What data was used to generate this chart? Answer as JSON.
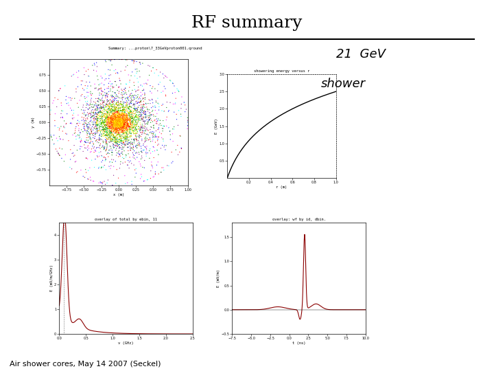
{
  "title": "RF summary",
  "subtitle": "Air shower cores, May 14 2007 (Seckel)",
  "handwritten_line1": "21  GeV",
  "handwritten_line2": "shower",
  "file_label": "Summary: ...proton\\7_33GeVproton001.qround",
  "upper_right_title": "showering energy versus r",
  "lower_left_title": "overlay of total by ebin, 11",
  "lower_right_title": "overlay: wf by id, dbin.",
  "background_color": "#ffffff",
  "title_fontsize": 18,
  "subtitle_fontsize": 8
}
